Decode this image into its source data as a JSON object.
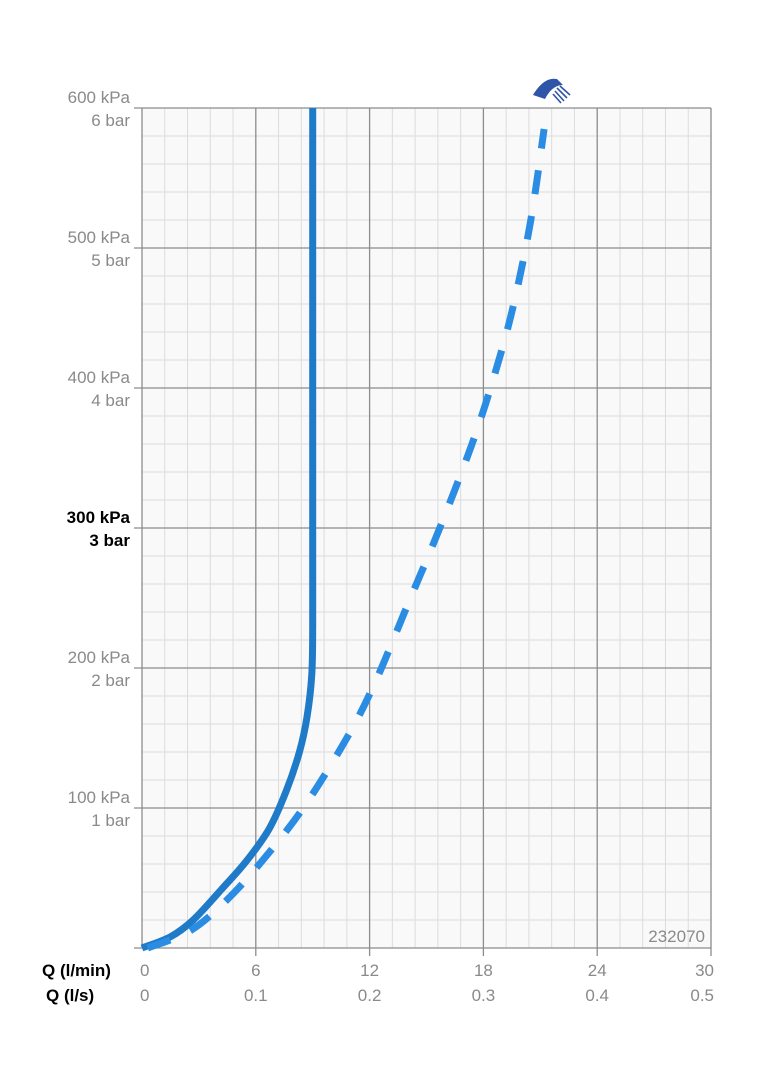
{
  "chart_data": {
    "type": "line",
    "code": "232070",
    "x_axis": {
      "labels": [
        "Q (l/min)",
        "Q (l/s)"
      ],
      "range": [
        0,
        30
      ],
      "ticks_lmin": [
        "0",
        "6",
        "12",
        "18",
        "24",
        "30"
      ],
      "ticks_ls": [
        "0",
        "0.1",
        "0.2",
        "0.3",
        "0.4",
        "0.5"
      ]
    },
    "y_axis": {
      "range_kpa": [
        0,
        600
      ],
      "ticks": [
        {
          "value": 100,
          "kpa": "100 kPa",
          "bar": "1 bar",
          "highlight": false
        },
        {
          "value": 200,
          "kpa": "200 kPa",
          "bar": "2 bar",
          "highlight": false
        },
        {
          "value": 300,
          "kpa": "300 kPa",
          "bar": "3 bar",
          "highlight": true
        },
        {
          "value": 400,
          "kpa": "400 kPa",
          "bar": "4 bar",
          "highlight": false
        },
        {
          "value": 500,
          "kpa": "500 kPa",
          "bar": "5 bar",
          "highlight": false
        },
        {
          "value": 600,
          "kpa": "600 kPa",
          "bar": "6 bar",
          "highlight": false
        }
      ]
    },
    "grid": true,
    "series": [
      {
        "style": "solid",
        "color": "#1f7ac8",
        "points": [
          [
            0,
            0
          ],
          [
            1.5,
            8
          ],
          [
            2.7,
            20
          ],
          [
            4.2,
            42
          ],
          [
            5.5,
            62
          ],
          [
            6.7,
            85
          ],
          [
            7.6,
            112
          ],
          [
            8.3,
            140
          ],
          [
            8.7,
            165
          ],
          [
            8.95,
            195
          ],
          [
            9.0,
            230
          ],
          [
            9.0,
            300
          ],
          [
            9.0,
            400
          ],
          [
            9.0,
            500
          ],
          [
            9.0,
            600
          ]
        ]
      },
      {
        "style": "dashed",
        "color": "#2a8de3",
        "points": [
          [
            0.3,
            0
          ],
          [
            2.5,
            12
          ],
          [
            4.3,
            32
          ],
          [
            6.2,
            60
          ],
          [
            8.5,
            100
          ],
          [
            10.8,
            150
          ],
          [
            12.3,
            190
          ],
          [
            14.0,
            245
          ],
          [
            15.7,
            300
          ],
          [
            17.4,
            360
          ],
          [
            18.6,
            410
          ],
          [
            19.6,
            460
          ],
          [
            20.5,
            520
          ],
          [
            21.2,
            585
          ]
        ],
        "icon": "shower-head-icon"
      }
    ]
  }
}
